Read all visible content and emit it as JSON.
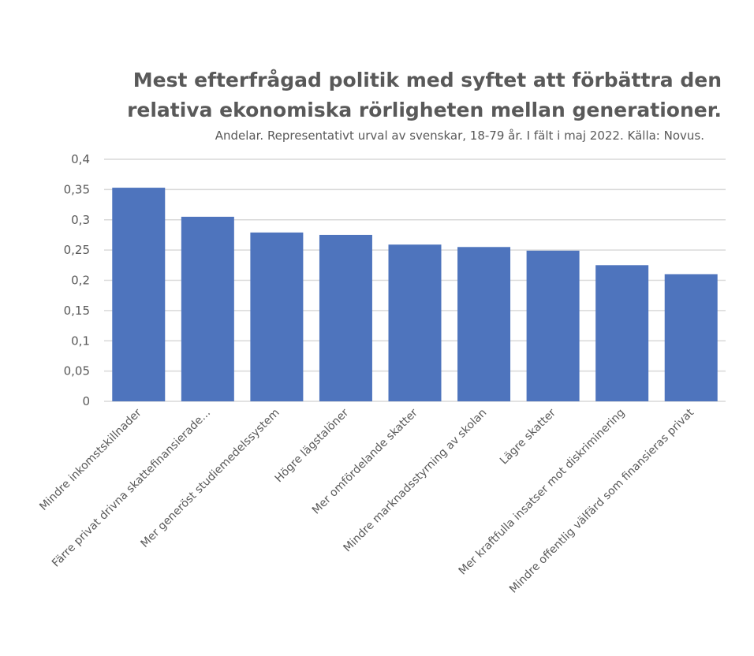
{
  "chart_data": {
    "type": "bar",
    "title": [
      "Mest efterfrågad politik med syftet att förbättra den",
      "relativa ekonomiska rörligheten mellan generationer."
    ],
    "subtitle": "Andelar. Representativt urval av svenskar, 18-79 år. I fält i maj 2022. Källa: Novus.",
    "xlabel": "",
    "ylabel": "",
    "ylim": [
      0,
      0.4
    ],
    "yticks": [
      0,
      0.05,
      0.1,
      0.15,
      0.2,
      0.25,
      0.3,
      0.35,
      0.4
    ],
    "ytick_labels": [
      "0",
      "0,05",
      "0,1",
      "0,15",
      "0,2",
      "0,25",
      "0,3",
      "0,35",
      "0,4"
    ],
    "grid": true,
    "categories": [
      "Mindre inkomstskillnader",
      "Färre privat drivna skattefinansierade...",
      "Mer generöst studiemedelssystem",
      "Högre lägstalöner",
      "Mer omfördelande skatter",
      "Mindre marknadsstyrning av skolan",
      "Lägre skatter",
      "Mer kraftfulla insatser mot diskriminering",
      "Mindre offentlig välfärd som finansieras privat"
    ],
    "values": [
      0.353,
      0.305,
      0.279,
      0.275,
      0.259,
      0.255,
      0.249,
      0.225,
      0.21
    ],
    "bar_color": "#4e74bd"
  }
}
